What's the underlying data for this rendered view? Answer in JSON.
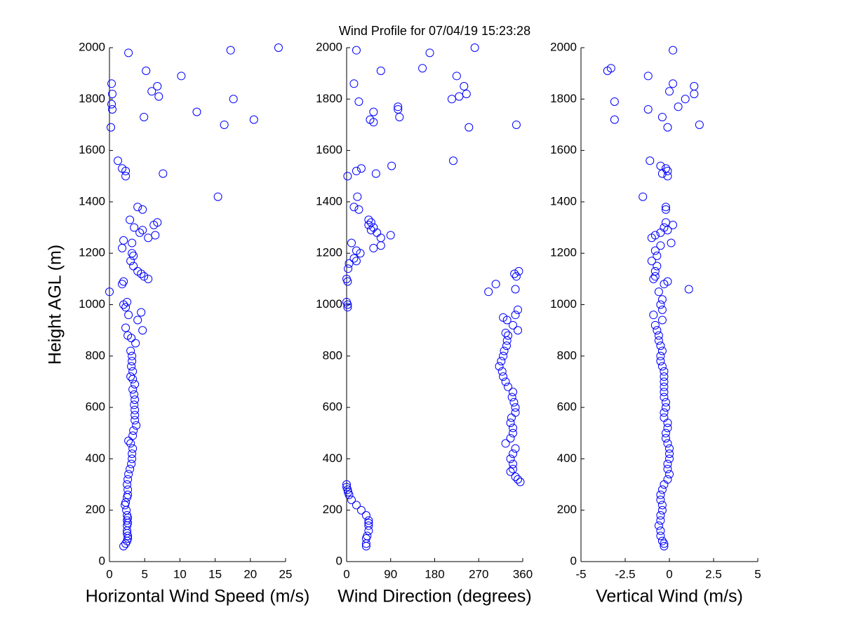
{
  "chart_data": [
    {
      "type": "scatter",
      "ylabel": "Height AGL (m)",
      "xlabel": "Horizontal Wind Speed (m/s)",
      "color": "#0000ff",
      "xlim": [
        0,
        25
      ],
      "xticks": [
        0,
        5,
        10,
        15,
        20,
        25
      ],
      "ylim": [
        0,
        2000
      ],
      "yticks": [
        0,
        200,
        400,
        600,
        800,
        1000,
        1200,
        1400,
        1600,
        1800,
        2000
      ],
      "x": [
        2.0,
        2.3,
        2.5,
        2.6,
        2.6,
        2.5,
        2.5,
        2.5,
        2.6,
        2.5,
        2.6,
        2.5,
        2.4,
        2.2,
        2.3,
        2.5,
        2.6,
        2.6,
        2.5,
        2.6,
        2.7,
        2.9,
        3.1,
        3.2,
        3.2,
        3.3,
        3.0,
        2.7,
        3.3,
        3.4,
        3.8,
        3.6,
        3.6,
        3.6,
        3.5,
        3.6,
        3.5,
        3.3,
        3.6,
        3.3,
        3.0,
        3.3,
        3.1,
        3.2,
        3.2,
        3.0,
        3.7,
        3.1,
        2.6,
        4.7,
        2.3,
        4.0,
        2.7,
        4.5,
        2.3,
        2.0,
        2.5,
        0.0,
        1.8,
        2.0,
        5.5,
        4.9,
        4.5,
        4.0,
        3.4,
        3.0,
        3.4,
        3.2,
        1.8,
        3.2,
        2.0,
        5.5,
        6.5,
        4.3,
        4.7,
        3.5,
        6.3,
        6.8,
        2.9,
        4.7,
        4.0,
        15.4,
        2.3,
        7.6,
        2.3,
        1.8,
        1.2,
        0.2,
        16.3,
        20.5,
        4.9,
        12.4,
        0.4,
        0.3,
        17.6,
        7.0,
        0.4,
        6.0,
        6.8,
        0.3,
        10.2,
        5.2,
        2.7,
        17.2,
        24.0
      ],
      "y": [
        60,
        70,
        80,
        90,
        100,
        110,
        120,
        140,
        150,
        160,
        170,
        180,
        200,
        220,
        230,
        250,
        260,
        280,
        300,
        320,
        340,
        360,
        380,
        400,
        420,
        440,
        460,
        470,
        490,
        510,
        530,
        550,
        570,
        590,
        610,
        630,
        650,
        670,
        690,
        710,
        720,
        740,
        760,
        780,
        800,
        820,
        850,
        870,
        880,
        900,
        910,
        940,
        960,
        970,
        990,
        1000,
        1010,
        1050,
        1080,
        1090,
        1100,
        1110,
        1120,
        1130,
        1150,
        1170,
        1190,
        1200,
        1220,
        1240,
        1250,
        1260,
        1270,
        1280,
        1290,
        1300,
        1310,
        1320,
        1330,
        1370,
        1380,
        1420,
        1500,
        1510,
        1520,
        1530,
        1560,
        1690,
        1700,
        1720,
        1730,
        1750,
        1760,
        1780,
        1800,
        1810,
        1820,
        1830,
        1850,
        1860,
        1890,
        1910,
        1980,
        1990,
        2000
      ]
    },
    {
      "type": "scatter",
      "title": "Wind Profile for  07/04/19 15:23:28",
      "xlabel": "Wind Direction (degrees)",
      "color": "#0000ff",
      "xlim": [
        0,
        360
      ],
      "xticks": [
        0,
        90,
        180,
        270,
        360
      ],
      "ylim": [
        0,
        2000
      ],
      "yticks": [
        0,
        200,
        400,
        600,
        800,
        1000,
        1200,
        1400,
        1600,
        1800,
        2000
      ],
      "x": [
        40,
        40,
        40,
        42,
        45,
        45,
        45,
        45,
        40,
        30,
        20,
        10,
        5,
        3,
        2,
        0,
        0,
        355,
        350,
        345,
        335,
        340,
        340,
        335,
        340,
        345,
        325,
        335,
        340,
        340,
        335,
        337,
        345,
        345,
        342,
        338,
        340,
        330,
        325,
        320,
        318,
        312,
        316,
        320,
        322,
        327,
        328,
        330,
        325,
        350,
        340,
        328,
        320,
        345,
        350,
        2,
        2,
        0,
        290,
        345,
        305,
        2,
        0,
        347,
        343,
        352,
        3,
        5,
        20,
        15,
        28,
        20,
        55,
        70,
        10,
        70,
        90,
        62,
        50,
        55,
        45,
        50,
        45,
        25,
        15,
        22,
        2,
        60,
        20,
        30,
        92,
        218,
        250,
        347,
        55,
        48,
        108,
        55,
        105,
        105,
        25,
        215,
        230,
        245,
        240,
        15,
        225,
        70,
        155,
        170,
        20,
        262
      ],
      "y": [
        60,
        70,
        90,
        100,
        120,
        140,
        150,
        160,
        180,
        200,
        220,
        240,
        260,
        270,
        280,
        290,
        300,
        310,
        320,
        330,
        350,
        360,
        380,
        400,
        420,
        440,
        460,
        480,
        500,
        520,
        540,
        560,
        580,
        600,
        620,
        640,
        660,
        680,
        700,
        720,
        740,
        760,
        780,
        800,
        820,
        840,
        860,
        880,
        890,
        900,
        920,
        940,
        950,
        960,
        980,
        990,
        1000,
        1010,
        1050,
        1060,
        1080,
        1090,
        1100,
        1110,
        1120,
        1130,
        1140,
        1160,
        1170,
        1180,
        1200,
        1210,
        1220,
        1230,
        1240,
        1260,
        1270,
        1280,
        1290,
        1300,
        1310,
        1320,
        1330,
        1370,
        1380,
        1420,
        1500,
        1510,
        1520,
        1530,
        1540,
        1560,
        1690,
        1700,
        1710,
        1720,
        1730,
        1750,
        1760,
        1770,
        1790,
        1800,
        1810,
        1820,
        1850,
        1860,
        1890,
        1910,
        1920,
        1980,
        1990,
        2000
      ]
    },
    {
      "type": "scatter",
      "xlabel": "Vertical Wind (m/s)",
      "color": "#0000ff",
      "xlim": [
        -5,
        5
      ],
      "xticks": [
        -5,
        -2.5,
        0,
        2.5,
        5
      ],
      "ylim": [
        0,
        2000
      ],
      "yticks": [
        0,
        200,
        400,
        600,
        800,
        1000,
        1200,
        1400,
        1600,
        1800,
        2000
      ],
      "x": [
        -0.3,
        -0.3,
        -0.4,
        -0.5,
        -0.5,
        -0.6,
        -0.5,
        -0.5,
        -0.4,
        -0.4,
        -0.5,
        -0.5,
        -0.4,
        -0.3,
        -0.1,
        0.0,
        -0.1,
        -0.1,
        0.0,
        0.0,
        0.0,
        -0.1,
        -0.2,
        -0.2,
        -0.1,
        -0.1,
        -0.3,
        -0.3,
        -0.2,
        -0.2,
        -0.3,
        -0.3,
        -0.3,
        -0.3,
        -0.3,
        -0.3,
        -0.4,
        -0.5,
        -0.5,
        -0.4,
        -0.5,
        -0.6,
        -0.6,
        -0.7,
        -0.8,
        -0.4,
        -0.9,
        -0.4,
        -0.5,
        -0.4,
        -0.6,
        1.1,
        -0.3,
        -0.1,
        -0.9,
        -0.8,
        -0.8,
        -0.7,
        -1.0,
        -0.7,
        -0.8,
        -0.5,
        0.1,
        -1.0,
        -0.8,
        -0.5,
        -0.1,
        -0.3,
        0.2,
        -0.2,
        -0.2,
        -0.2,
        -1.5,
        -0.1,
        -0.4,
        -0.1,
        -0.2,
        -0.5,
        -1.1,
        -0.1,
        1.7,
        -3.1,
        -0.4,
        -1.2,
        0.5,
        -3.1,
        0.9,
        1.4,
        0.0,
        1.4,
        0.2,
        -1.2,
        -3.5,
        -3.3,
        0.2
      ],
      "y": [
        60,
        70,
        80,
        100,
        120,
        140,
        160,
        180,
        200,
        220,
        240,
        260,
        280,
        300,
        320,
        340,
        360,
        380,
        400,
        420,
        440,
        460,
        480,
        500,
        520,
        540,
        560,
        580,
        600,
        620,
        640,
        660,
        680,
        700,
        720,
        740,
        760,
        780,
        800,
        820,
        840,
        860,
        880,
        900,
        920,
        940,
        960,
        980,
        1000,
        1020,
        1050,
        1060,
        1080,
        1090,
        1100,
        1110,
        1130,
        1150,
        1170,
        1190,
        1210,
        1230,
        1240,
        1260,
        1270,
        1280,
        1290,
        1300,
        1310,
        1320,
        1370,
        1380,
        1420,
        1500,
        1510,
        1520,
        1530,
        1540,
        1560,
        1690,
        1700,
        1720,
        1730,
        1760,
        1770,
        1790,
        1800,
        1820,
        1830,
        1850,
        1860,
        1890,
        1910,
        1920,
        1990
      ]
    }
  ]
}
